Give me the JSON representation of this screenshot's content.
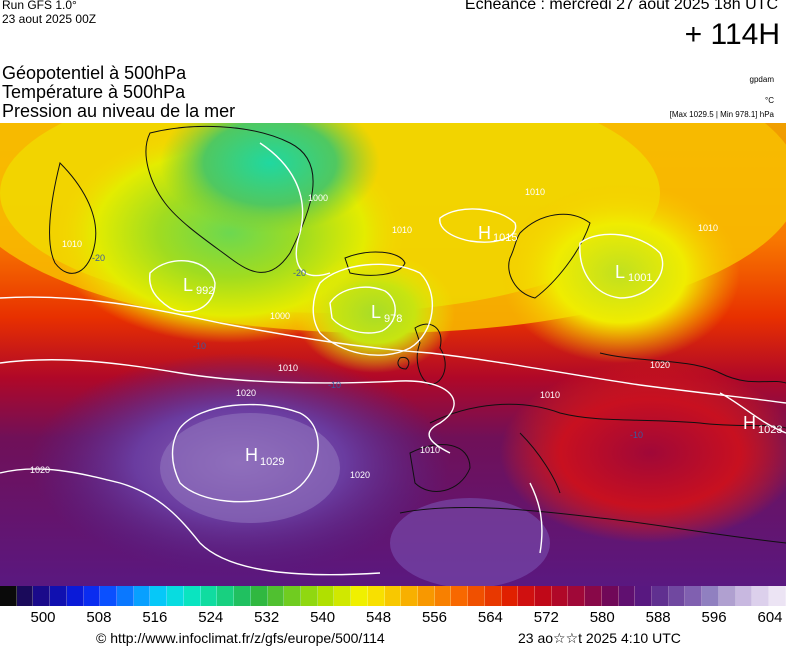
{
  "header": {
    "run_title": "Run GFS 1.0°",
    "run_date": "23 aout 2025 00Z",
    "echeance": "Echéance : mercredi 27 aout 2025 18h UTC",
    "lead_time": "+ 114H"
  },
  "layers": [
    {
      "label": "Géopotentiel à 500hPa",
      "unit": "gpdam"
    },
    {
      "label": "Température à 500hPa",
      "unit": "°C"
    },
    {
      "label": "Pression au niveau de la mer",
      "unit": "[Max 1029.5 | Min 978.1] hPa"
    }
  ],
  "pressure_systems": [
    {
      "type": "H",
      "value": "1015"
    },
    {
      "type": "L",
      "value": "1001"
    },
    {
      "type": "L",
      "value": "992"
    },
    {
      "type": "L",
      "value": "978"
    },
    {
      "type": "H",
      "value": "1029"
    },
    {
      "type": "H",
      "value": "1023"
    }
  ],
  "isobar_labels": [
    "1010",
    "1000",
    "1010",
    "1020",
    "1010",
    "1020",
    "1010",
    "1020",
    "1010",
    "1010",
    "1020",
    "1000",
    "1010"
  ],
  "temperature_labels": [
    "-20",
    "-20",
    "-10",
    "-10",
    "-10"
  ],
  "colorbar": {
    "colors": [
      "#0a0a0a",
      "#1a0a5a",
      "#1a0a8a",
      "#1010b0",
      "#0a1ad8",
      "#0a2cf0",
      "#0a50ff",
      "#0a78ff",
      "#08a0ff",
      "#06c8f8",
      "#08dce0",
      "#0ae4c0",
      "#10dca0",
      "#18d080",
      "#20c060",
      "#30b840",
      "#50c030",
      "#70cc20",
      "#90d810",
      "#b0e000",
      "#d0e800",
      "#f0f000",
      "#f8e000",
      "#f8c800",
      "#f8b000",
      "#f89800",
      "#f88000",
      "#f86800",
      "#f05000",
      "#e83800",
      "#e02000",
      "#d01010",
      "#c00818",
      "#b00828",
      "#a00838",
      "#880848",
      "#700858",
      "#601070",
      "#581880",
      "#603090",
      "#7048a0",
      "#8060b0",
      "#9080c0",
      "#b0a0d0",
      "#c8b8e0",
      "#dcd0ec",
      "#ece4f4"
    ],
    "tick_labels": [
      "500",
      "508",
      "516",
      "524",
      "532",
      "540",
      "548",
      "556",
      "564",
      "572",
      "580",
      "588",
      "596",
      "604"
    ]
  },
  "footer": {
    "url": "© http://www.infoclimat.fr/z/gfs/europe/500/114",
    "generated": "23 ao☆☆t 2025  4:10 UTC"
  }
}
